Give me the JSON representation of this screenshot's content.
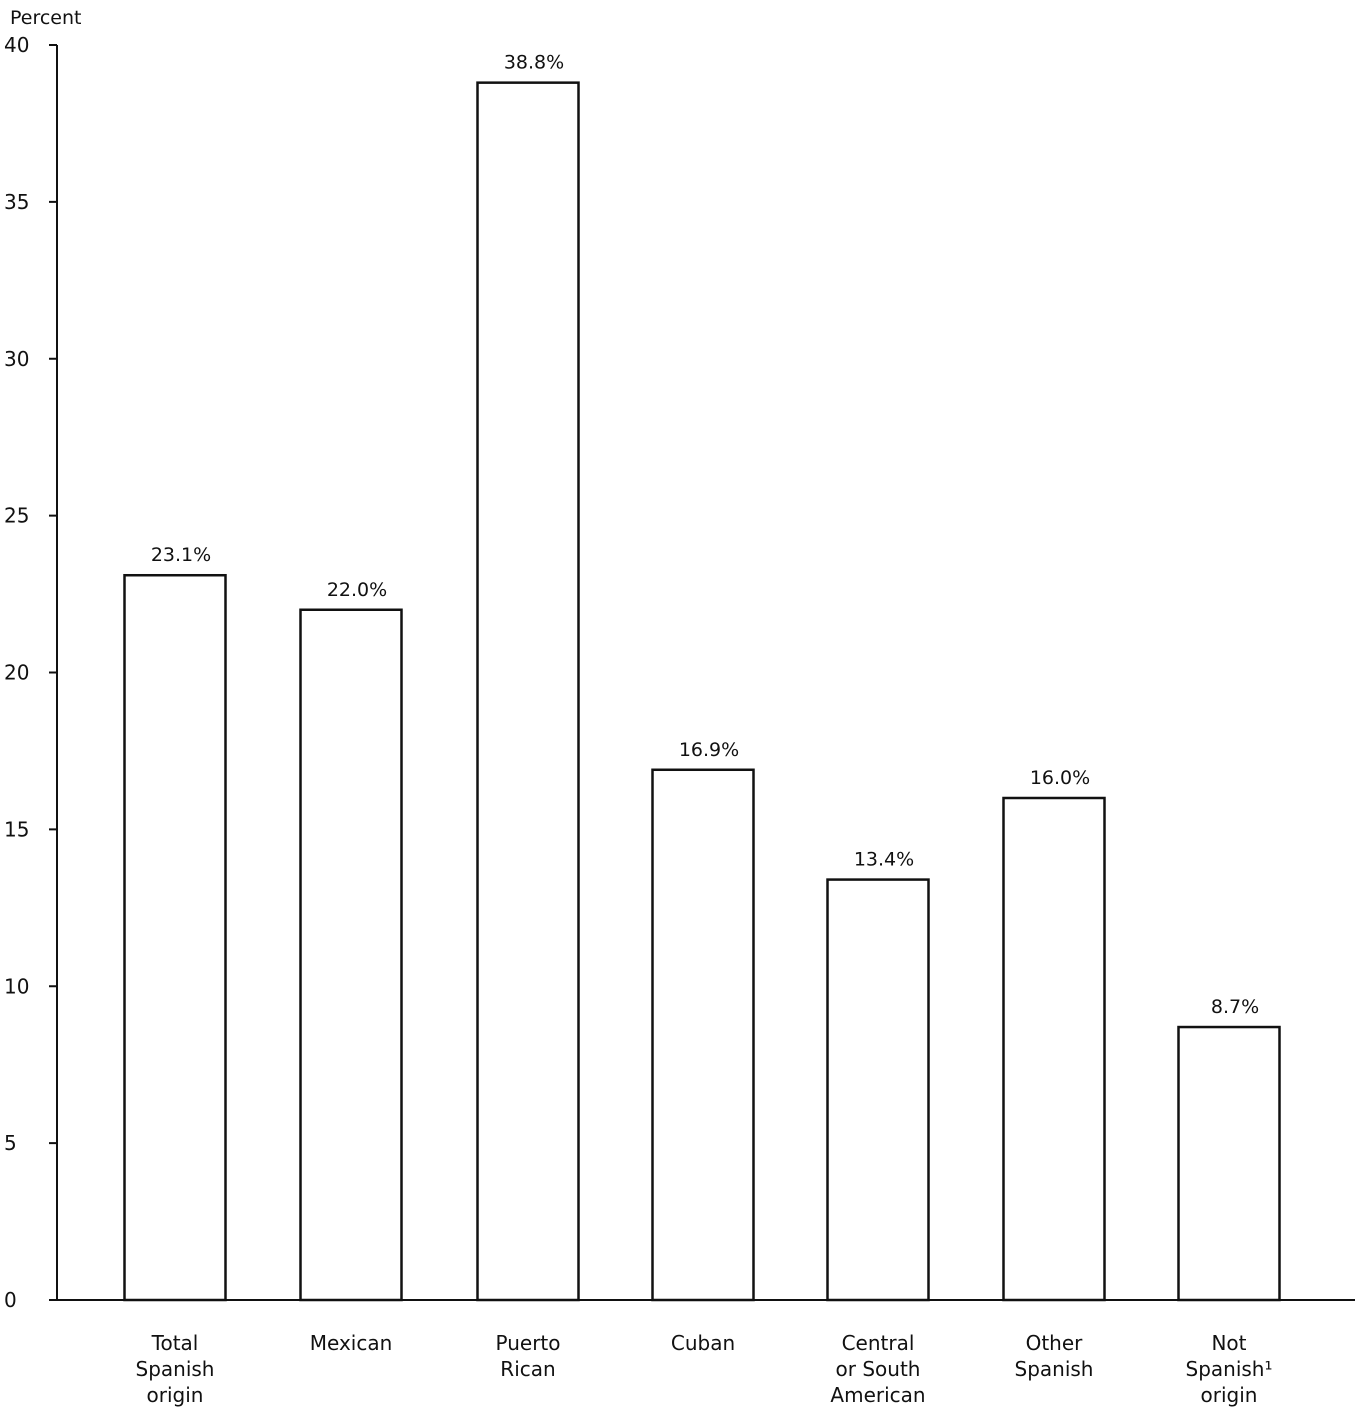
{
  "chart_data": {
    "type": "bar",
    "ylabel": "Percent",
    "ylim": [
      0,
      40
    ],
    "yticks": [
      0,
      5,
      10,
      15,
      20,
      25,
      30,
      35,
      40
    ],
    "grid": false,
    "categories": [
      [
        "Total",
        "Spanish",
        "origin"
      ],
      [
        "Mexican"
      ],
      [
        "Puerto",
        "Rican"
      ],
      [
        "Cuban"
      ],
      [
        "Central",
        "or South",
        "American"
      ],
      [
        "Other",
        "Spanish"
      ],
      [
        "Not",
        "Spanish¹",
        "origin"
      ]
    ],
    "values": [
      23.1,
      22.0,
      38.8,
      16.9,
      13.4,
      16.0,
      8.7
    ],
    "value_labels": [
      "23.1%",
      "22.0%",
      "38.8%",
      "16.9%",
      "13.4%",
      "16.0%",
      "8.7%"
    ],
    "colors": {
      "bar_fill": "#ffffff",
      "bar_stroke": "#111111",
      "axis": "#111111"
    }
  }
}
